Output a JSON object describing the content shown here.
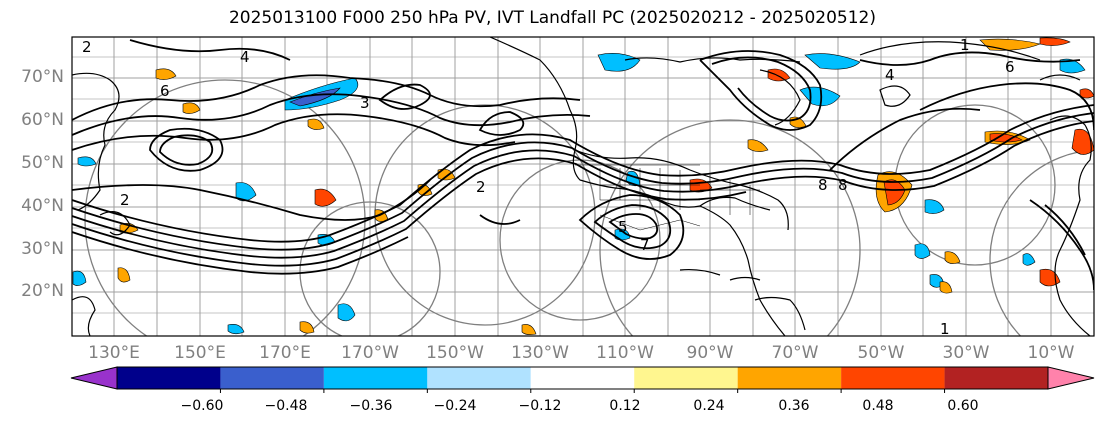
{
  "title": "2025013100 F000 250 hPa PV, IVT Landfall PC (2025020212 - 2025020512)",
  "lat_labels": [
    "70°N",
    "60°N",
    "50°N",
    "40°N",
    "30°N",
    "20°N"
  ],
  "lon_labels": [
    "130°E",
    "150°E",
    "170°E",
    "170°W",
    "150°W",
    "130°W",
    "110°W",
    "90°W",
    "70°W",
    "50°W",
    "30°W",
    "10°W"
  ],
  "colorbar": {
    "ticks": [
      "−0.60",
      "−0.48",
      "−0.36",
      "−0.24",
      "−0.12",
      "0.12",
      "0.24",
      "0.36",
      "0.48",
      "0.60"
    ],
    "colors": [
      "#9932cc",
      "#00008b",
      "#3a5fcd",
      "#00bfff",
      "#b0e2ff",
      "#ffffff",
      "#fff68f",
      "#ffa500",
      "#ff4500",
      "#b22222",
      "#ff82ab"
    ]
  },
  "contour_labels": [
    "2",
    "4",
    "6",
    "3",
    "2",
    "5",
    "7",
    "8",
    "1",
    "2",
    "4",
    "6",
    "8",
    "1"
  ]
}
